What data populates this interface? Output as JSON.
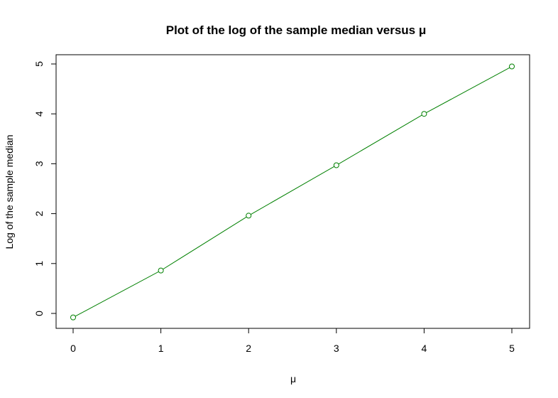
{
  "chart_data": {
    "type": "line",
    "title": "Plot of the log of the sample median versus μ",
    "xlabel": "μ",
    "ylabel": "Log of the sample median",
    "xlim": [
      0,
      5
    ],
    "ylim": [
      0,
      5
    ],
    "x_ticks": [
      0,
      1,
      2,
      3,
      4,
      5
    ],
    "y_ticks": [
      0,
      1,
      2,
      3,
      4,
      5
    ],
    "x_tick_labels": [
      "0",
      "1",
      "2",
      "3",
      "4",
      "5"
    ],
    "y_tick_labels": [
      "0",
      "1",
      "2",
      "3",
      "4",
      "5"
    ],
    "grid": false,
    "legend": "none",
    "markers": "open-circle",
    "series": [
      {
        "x": [
          0,
          1,
          2,
          3,
          4,
          5
        ],
        "y": [
          -0.08,
          0.86,
          1.96,
          2.97,
          4.0,
          4.95
        ],
        "color": "#008000"
      }
    ]
  }
}
